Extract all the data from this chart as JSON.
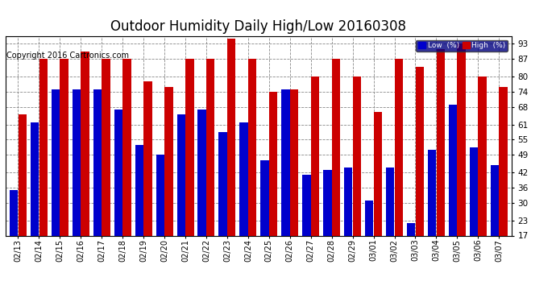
{
  "title": "Outdoor Humidity Daily High/Low 20160308",
  "copyright": "Copyright 2016 Cartronics.com",
  "categories": [
    "02/13",
    "02/14",
    "02/15",
    "02/16",
    "02/17",
    "02/18",
    "02/19",
    "02/20",
    "02/21",
    "02/22",
    "02/23",
    "02/24",
    "02/25",
    "02/26",
    "02/27",
    "02/28",
    "02/29",
    "03/01",
    "03/02",
    "03/03",
    "03/04",
    "03/05",
    "03/06",
    "03/07"
  ],
  "high_values": [
    65,
    87,
    87,
    90,
    87,
    87,
    78,
    76,
    87,
    87,
    95,
    87,
    74,
    75,
    80,
    87,
    80,
    66,
    87,
    84,
    91,
    93,
    80,
    76
  ],
  "low_values": [
    35,
    62,
    75,
    75,
    75,
    67,
    53,
    49,
    65,
    67,
    58,
    62,
    47,
    75,
    41,
    43,
    44,
    31,
    44,
    22,
    51,
    69,
    52,
    45
  ],
  "low_color": "#0000cc",
  "high_color": "#cc0000",
  "bg_color": "#ffffff",
  "plot_bg_color": "#ffffff",
  "grid_color": "#888888",
  "yticks": [
    17,
    23,
    30,
    36,
    42,
    49,
    55,
    61,
    68,
    74,
    80,
    87,
    93
  ],
  "ymin": 17,
  "ymax": 96,
  "legend_low_label": "Low  (%)",
  "legend_high_label": "High  (%)",
  "title_fontsize": 12,
  "copyright_fontsize": 7,
  "tick_fontsize": 7,
  "ytick_fontsize": 7.5
}
